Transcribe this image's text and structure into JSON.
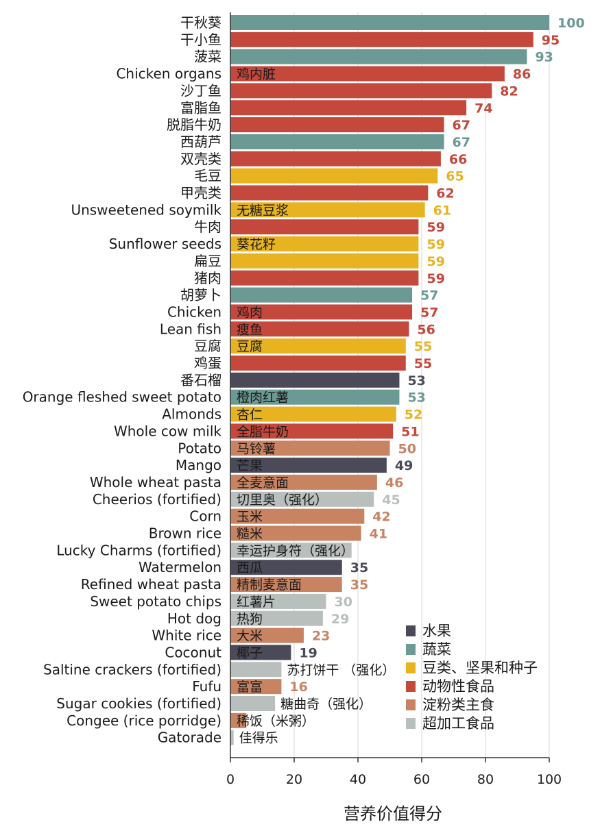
{
  "chart_data": {
    "type": "bar",
    "orientation": "horizontal",
    "title": "",
    "xlabel": "营养价值得分",
    "ylabel": "",
    "xlim": [
      0,
      100
    ],
    "xticks": [
      0,
      20,
      40,
      60,
      80,
      100
    ],
    "grid": true,
    "legend_position": "bottom-right",
    "groups": [
      {
        "key": "fruit",
        "name": "水果",
        "color": "#4a4a58"
      },
      {
        "key": "veg",
        "name": "蔬菜",
        "color": "#6b9a94"
      },
      {
        "key": "legume",
        "name": "豆类、坚果和种子",
        "color": "#e8b321"
      },
      {
        "key": "animal",
        "name": "动物性食品",
        "color": "#c4483c"
      },
      {
        "key": "starch",
        "name": "淀粉类主食",
        "color": "#c88462"
      },
      {
        "key": "processed",
        "name": "超加工食品",
        "color": "#b8bfbd"
      }
    ],
    "items": [
      {
        "en": "干秋葵",
        "cn": "",
        "value": 100,
        "group": "veg",
        "label": "100"
      },
      {
        "en": "干小鱼",
        "cn": "",
        "value": 95,
        "group": "animal",
        "label": "95"
      },
      {
        "en": "菠菜",
        "cn": "",
        "value": 93,
        "group": "veg",
        "label": "93"
      },
      {
        "en": "Chicken organs",
        "cn": "鸡内脏",
        "value": 86,
        "group": "animal",
        "label": "86"
      },
      {
        "en": "沙丁鱼",
        "cn": "",
        "value": 82,
        "group": "animal",
        "label": "82"
      },
      {
        "en": "富脂鱼",
        "cn": "",
        "value": 74,
        "group": "animal",
        "label": "74"
      },
      {
        "en": "脱脂牛奶",
        "cn": "",
        "value": 67,
        "group": "animal",
        "label": "67"
      },
      {
        "en": "西葫芦",
        "cn": "",
        "value": 67,
        "group": "veg",
        "label": "67"
      },
      {
        "en": "双壳类",
        "cn": "",
        "value": 66,
        "group": "animal",
        "label": "66"
      },
      {
        "en": "毛豆",
        "cn": "",
        "value": 65,
        "group": "legume",
        "label": "65"
      },
      {
        "en": "甲壳类",
        "cn": "",
        "value": 62,
        "group": "animal",
        "label": "62"
      },
      {
        "en": "Unsweetened soymilk",
        "cn": "无糖豆浆",
        "value": 61,
        "group": "legume",
        "label": "61"
      },
      {
        "en": "牛肉",
        "cn": "",
        "value": 59,
        "group": "animal",
        "label": "59"
      },
      {
        "en": "Sunflower seeds",
        "cn": "葵花籽",
        "value": 59,
        "group": "legume",
        "label": "59"
      },
      {
        "en": "扁豆",
        "cn": "",
        "value": 59,
        "group": "legume",
        "label": "59"
      },
      {
        "en": "猪肉",
        "cn": "",
        "value": 59,
        "group": "animal",
        "label": "59"
      },
      {
        "en": "胡萝卜",
        "cn": "",
        "value": 57,
        "group": "veg",
        "label": "57"
      },
      {
        "en": "Chicken",
        "cn": "鸡肉",
        "value": 57,
        "group": "animal",
        "label": "57"
      },
      {
        "en": "Lean fish",
        "cn": "瘦鱼",
        "value": 56,
        "group": "animal",
        "label": "56"
      },
      {
        "en": "豆腐",
        "cn": "豆腐",
        "value": 55,
        "group": "legume",
        "label": "55"
      },
      {
        "en": "鸡蛋",
        "cn": "",
        "value": 55,
        "group": "animal",
        "label": "55"
      },
      {
        "en": "番石榴",
        "cn": "",
        "value": 53,
        "group": "fruit",
        "label": "53"
      },
      {
        "en": "Orange fleshed sweet potato",
        "cn": "橙肉红薯",
        "value": 53,
        "group": "veg",
        "label": "53"
      },
      {
        "en": "Almonds",
        "cn": "杏仁",
        "value": 52,
        "group": "legume",
        "label": "52"
      },
      {
        "en": "Whole cow milk",
        "cn": "全脂牛奶",
        "value": 51,
        "group": "animal",
        "label": "51"
      },
      {
        "en": "Potato",
        "cn": "马铃薯",
        "value": 50,
        "group": "starch",
        "label": "50"
      },
      {
        "en": "Mango",
        "cn": "芒果",
        "value": 49,
        "group": "fruit",
        "label": "49"
      },
      {
        "en": "Whole wheat pasta",
        "cn": "全麦意面",
        "value": 46,
        "group": "starch",
        "label": "46"
      },
      {
        "en": "Cheerios (fortified)",
        "cn": "切里奥（强化）",
        "value": 45,
        "group": "processed",
        "label": "45"
      },
      {
        "en": "Corn",
        "cn": "玉米",
        "value": 42,
        "group": "starch",
        "label": "42"
      },
      {
        "en": "Brown rice",
        "cn": "糙米",
        "value": 41,
        "group": "starch",
        "label": "41"
      },
      {
        "en": "Lucky Charms (fortified)",
        "cn": "幸运护身符（强化）",
        "value": 38,
        "group": "processed",
        "label": ""
      },
      {
        "en": "Watermelon",
        "cn": "西瓜",
        "value": 35,
        "group": "fruit",
        "label": "35"
      },
      {
        "en": "Refined wheat pasta",
        "cn": "精制麦意面",
        "value": 35,
        "group": "starch",
        "label": "35"
      },
      {
        "en": "Sweet potato chips",
        "cn": "红薯片",
        "value": 30,
        "group": "processed",
        "label": "30"
      },
      {
        "en": "Hot dog",
        "cn": "热狗",
        "value": 29,
        "group": "processed",
        "label": "29"
      },
      {
        "en": "White rice",
        "cn": "大米",
        "value": 23,
        "group": "starch",
        "label": "23"
      },
      {
        "en": "Coconut",
        "cn": "椰子",
        "value": 19,
        "group": "fruit",
        "label": "19"
      },
      {
        "en": "Saltine crackers (fortified)",
        "cn": "苏打饼干 （强化）",
        "value": 16,
        "group": "processed",
        "label": ""
      },
      {
        "en": "Fufu",
        "cn": "富富",
        "value": 16,
        "group": "starch",
        "label": "16"
      },
      {
        "en": "Sugar cookies (fortified)",
        "cn": "糖曲奇（强化）",
        "value": 14,
        "group": "processed",
        "label": ""
      },
      {
        "en": "Congee (rice porridge)",
        "cn": "稀饭（米粥）",
        "value": 5,
        "group": "starch",
        "label": ""
      },
      {
        "en": "Gatorade",
        "cn": "佳得乐",
        "value": 1,
        "group": "processed",
        "label": ""
      }
    ]
  }
}
